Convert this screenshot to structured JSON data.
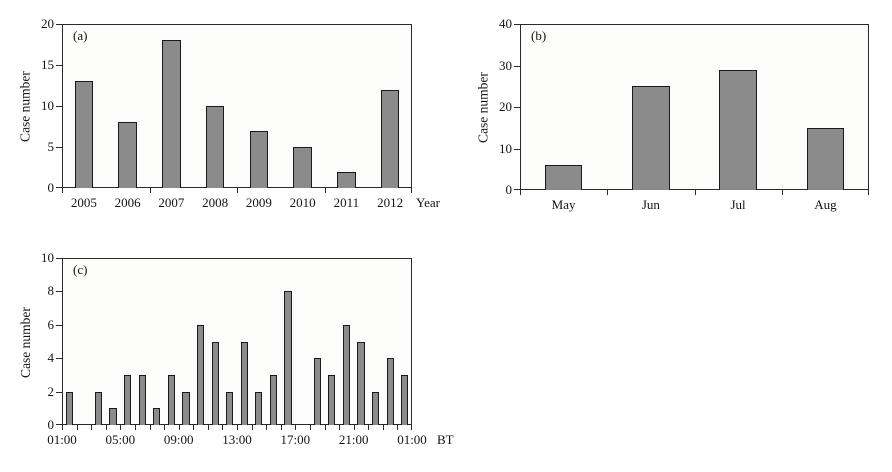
{
  "colors": {
    "bar_fill": "#8b8b8b",
    "bar_border": "#1a1a1a",
    "axis": "#2a2a2a",
    "plot_bg": "#fcfcfb",
    "page_bg": "#ffffff",
    "text": "#141414"
  },
  "chart_data": [
    {
      "id": "a",
      "type": "bar",
      "panel_label": "(a)",
      "title": "",
      "ylabel": "Case number",
      "x_suffix": "Year",
      "categories": [
        "2005",
        "2006",
        "2007",
        "2008",
        "2009",
        "2010",
        "2011",
        "2012"
      ],
      "values": [
        13,
        8,
        18,
        10,
        7,
        5,
        2,
        12
      ],
      "ylim": [
        0,
        20
      ],
      "yticks": [
        0,
        5,
        10,
        15,
        20
      ],
      "xtick_step": 2,
      "grid": "off",
      "legend": "none"
    },
    {
      "id": "b",
      "type": "bar",
      "panel_label": "(b)",
      "title": "",
      "ylabel": "Case number",
      "x_suffix": "",
      "categories": [
        "May",
        "Jun",
        "Jul",
        "Aug"
      ],
      "values": [
        6,
        25,
        29,
        15
      ],
      "ylim": [
        0,
        40
      ],
      "yticks": [
        0,
        10,
        20,
        30,
        40
      ],
      "xtick_step": 1,
      "grid": "off",
      "legend": "none"
    },
    {
      "id": "c",
      "type": "bar",
      "panel_label": "(c)",
      "title": "",
      "ylabel": "Case number",
      "x_suffix": "BT",
      "x_note": "24 hourly bins from 01:00 to 01:00 Beijing Time",
      "values": [
        2,
        0,
        2,
        1,
        3,
        3,
        1,
        3,
        2,
        6,
        5,
        2,
        5,
        2,
        3,
        8,
        0,
        4,
        3,
        6,
        5,
        2,
        4,
        3
      ],
      "x_boundary_labels": [
        "01:00",
        "05:00",
        "09:00",
        "13:00",
        "17:00",
        "21:00",
        "01:00"
      ],
      "x_boundary_label_step": 4,
      "ylim": [
        0,
        10
      ],
      "yticks": [
        0,
        2,
        4,
        6,
        8,
        10
      ],
      "xtick_step": 1,
      "grid": "off",
      "legend": "none"
    }
  ]
}
